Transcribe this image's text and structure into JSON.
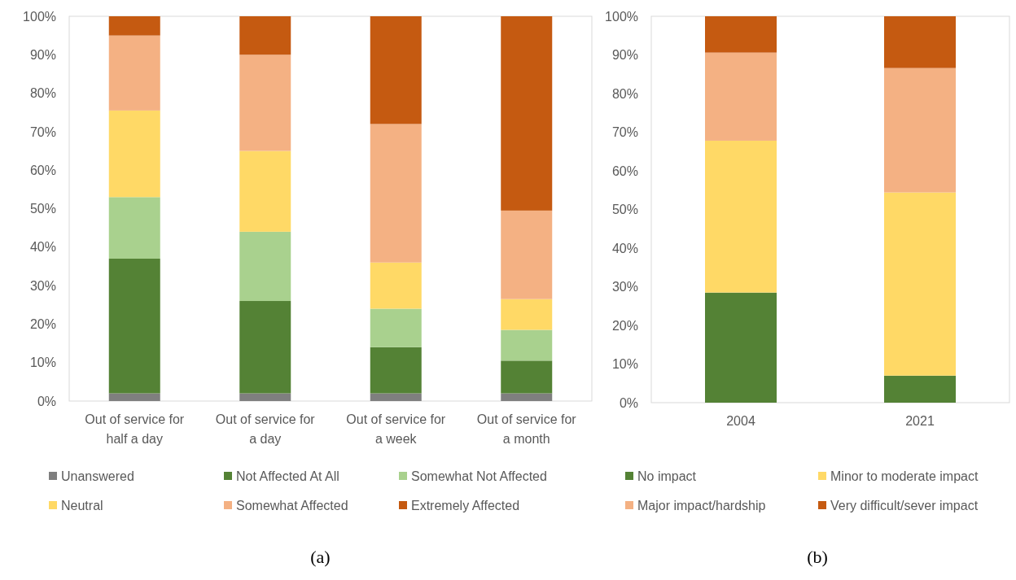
{
  "chart_data": [
    {
      "type": "bar",
      "stacked": true,
      "categories": [
        "Out of service for half a day",
        "Out of service for a day",
        "Out of service for a week",
        "Out of service for a month"
      ],
      "series": [
        {
          "name": "Unanswered",
          "color": "#7f7f7f",
          "values": [
            2,
            2,
            2,
            2
          ]
        },
        {
          "name": "Not Affected At All",
          "color": "#548235",
          "values": [
            35,
            24,
            12,
            8.5
          ]
        },
        {
          "name": "Somewhat Not Affected",
          "color": "#a9d18e",
          "values": [
            16,
            18,
            10,
            8
          ]
        },
        {
          "name": "Neutral",
          "color": "#ffd966",
          "values": [
            22.5,
            21,
            12,
            8
          ]
        },
        {
          "name": "Somewhat Affected",
          "color": "#f4b183",
          "values": [
            19.5,
            25,
            36,
            23
          ]
        },
        {
          "name": "Extremely Affected",
          "color": "#c55a11",
          "values": [
            5,
            10,
            28,
            50.5
          ]
        }
      ],
      "ylim": [
        0,
        100
      ],
      "yticks": [
        {
          "value": 0,
          "label": "0%"
        },
        {
          "value": 10,
          "label": "10%"
        },
        {
          "value": 20,
          "label": "20%"
        },
        {
          "value": 30,
          "label": "30%"
        },
        {
          "value": 40,
          "label": "40%"
        },
        {
          "value": 50,
          "label": "50%"
        },
        {
          "value": 60,
          "label": "60%"
        },
        {
          "value": 70,
          "label": "70%"
        },
        {
          "value": 80,
          "label": "80%"
        },
        {
          "value": 90,
          "label": "90%"
        },
        {
          "value": 100,
          "label": "100%"
        }
      ],
      "grid": false,
      "legend": "bottom",
      "annotations": [
        "(a)"
      ]
    },
    {
      "type": "bar",
      "stacked": true,
      "categories": [
        "2004",
        "2021"
      ],
      "series": [
        {
          "name": "No impact",
          "color": "#548235",
          "values": [
            28.5,
            7
          ]
        },
        {
          "name": "Minor to moderate impact",
          "color": "#ffd966",
          "values": [
            39.3,
            47.4
          ]
        },
        {
          "name": "Major impact/hardship",
          "color": "#f4b183",
          "values": [
            22.8,
            32.2
          ]
        },
        {
          "name": "Very difficult/sever impact",
          "color": "#c55a11",
          "values": [
            9.4,
            13.4
          ]
        }
      ],
      "ylim": [
        0,
        100
      ],
      "yticks": [
        {
          "value": 0,
          "label": "0%"
        },
        {
          "value": 10,
          "label": "10%"
        },
        {
          "value": 20,
          "label": "20%"
        },
        {
          "value": 30,
          "label": "30%"
        },
        {
          "value": 40,
          "label": "40%"
        },
        {
          "value": 50,
          "label": "50%"
        },
        {
          "value": 60,
          "label": "60%"
        },
        {
          "value": 70,
          "label": "70%"
        },
        {
          "value": 80,
          "label": "80%"
        },
        {
          "value": 90,
          "label": "90%"
        },
        {
          "value": 100,
          "label": "100%"
        }
      ],
      "grid": false,
      "legend": "bottom",
      "annotations": [
        "(b)"
      ]
    }
  ]
}
